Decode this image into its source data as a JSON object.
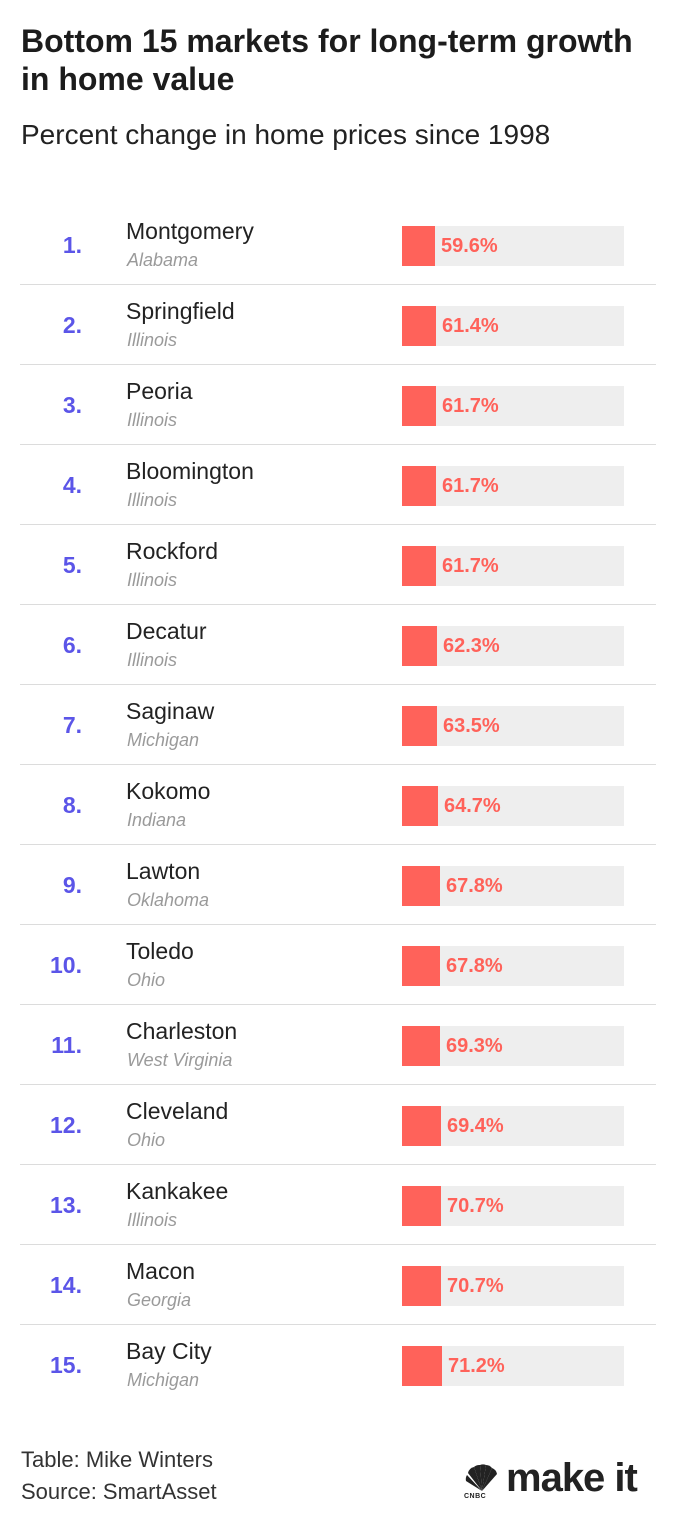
{
  "title": "Bottom 15 markets for long-term growth in home value",
  "subtitle": "Percent change in home prices since 1998",
  "chart_data": {
    "type": "bar",
    "orientation": "horizontal",
    "categories": [
      "Montgomery",
      "Springfield",
      "Peoria",
      "Bloomington",
      "Rockford",
      "Decatur",
      "Saginaw",
      "Kokomo",
      "Lawton",
      "Toledo",
      "Charleston",
      "Cleveland",
      "Kankakee",
      "Macon",
      "Bay City"
    ],
    "ranks": [
      "1.",
      "2.",
      "3.",
      "4.",
      "5.",
      "6.",
      "7.",
      "8.",
      "9.",
      "10.",
      "11.",
      "12.",
      "13.",
      "14.",
      "15."
    ],
    "states": [
      "Alabama",
      "Illinois",
      "Illinois",
      "Illinois",
      "Illinois",
      "Illinois",
      "Michigan",
      "Indiana",
      "Oklahoma",
      "Ohio",
      "West Virginia",
      "Ohio",
      "Illinois",
      "Georgia",
      "Michigan"
    ],
    "values": [
      59.6,
      61.4,
      61.7,
      61.7,
      61.7,
      62.3,
      63.5,
      64.7,
      67.8,
      67.8,
      69.3,
      69.4,
      70.7,
      70.7,
      71.2
    ],
    "value_labels": [
      "59.6%",
      "61.4%",
      "61.7%",
      "61.7%",
      "61.7%",
      "62.3%",
      "63.5%",
      "64.7%",
      "67.8%",
      "67.8%",
      "69.3%",
      "69.4%",
      "70.7%",
      "70.7%",
      "71.2%"
    ],
    "xlim": [
      0,
      400
    ],
    "grid": false,
    "colors": {
      "rank": "#5b55e8",
      "bar": "#ff625a",
      "track": "#eeeeee"
    }
  },
  "footer": {
    "table_credit": "Table: Mike Winters",
    "source": "Source: SmartAsset"
  },
  "logo": {
    "brand": "CNBC",
    "text": "make it",
    "icon": "peacock-icon"
  }
}
